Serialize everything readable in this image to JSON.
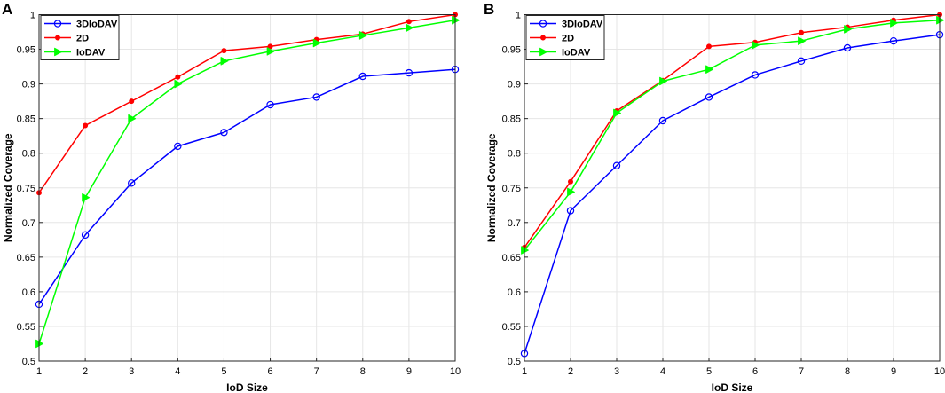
{
  "chart_data": [
    {
      "panel": "A",
      "type": "line",
      "xlabel": "IoD Size",
      "ylabel": "Normalized Coverage",
      "x": [
        1,
        2,
        3,
        4,
        5,
        6,
        7,
        8,
        9,
        10
      ],
      "xlim": [
        1,
        10
      ],
      "ylim": [
        0.5,
        1
      ],
      "xticks": [
        "1",
        "2",
        "3",
        "4",
        "5",
        "6",
        "7",
        "8",
        "9",
        "10"
      ],
      "yticks": [
        "0.5",
        "0.55",
        "0.6",
        "0.65",
        "0.7",
        "0.75",
        "0.8",
        "0.85",
        "0.9",
        "0.95",
        "1"
      ],
      "ytick_values": [
        0.5,
        0.55,
        0.6,
        0.65,
        0.7,
        0.75,
        0.8,
        0.85,
        0.9,
        0.95,
        1
      ],
      "grid": true,
      "legend_position": "top-left",
      "series": [
        {
          "name": "3DIoDAV",
          "color": "#0000ff",
          "marker": "circle",
          "values": [
            0.582,
            0.682,
            0.757,
            0.81,
            0.83,
            0.87,
            0.881,
            0.911,
            0.916,
            0.921
          ]
        },
        {
          "name": "2D",
          "color": "#ff0000",
          "marker": "dot",
          "values": [
            0.743,
            0.84,
            0.875,
            0.91,
            0.948,
            0.954,
            0.964,
            0.972,
            0.99,
            1.0
          ]
        },
        {
          "name": "IoDAV",
          "color": "#00ff00",
          "marker": "triangle-right",
          "values": [
            0.525,
            0.736,
            0.85,
            0.9,
            0.933,
            0.947,
            0.959,
            0.97,
            0.981,
            0.992
          ]
        }
      ]
    },
    {
      "panel": "B",
      "type": "line",
      "xlabel": "IoD Size",
      "ylabel": "Normalized Coverage",
      "x": [
        1,
        2,
        3,
        4,
        5,
        6,
        7,
        8,
        9,
        10
      ],
      "xlim": [
        1,
        10
      ],
      "ylim": [
        0.5,
        1
      ],
      "xticks": [
        "1",
        "2",
        "3",
        "4",
        "5",
        "6",
        "7",
        "8",
        "9",
        "10"
      ],
      "yticks": [
        "0.5",
        "0.55",
        "0.6",
        "0.65",
        "0.7",
        "0.75",
        "0.8",
        "0.85",
        "0.9",
        "0.95",
        "1"
      ],
      "ytick_values": [
        0.5,
        0.55,
        0.6,
        0.65,
        0.7,
        0.75,
        0.8,
        0.85,
        0.9,
        0.95,
        1
      ],
      "grid": true,
      "legend_position": "top-left",
      "series": [
        {
          "name": "3DIoDAV",
          "color": "#0000ff",
          "marker": "circle",
          "values": [
            0.511,
            0.717,
            0.782,
            0.847,
            0.881,
            0.913,
            0.933,
            0.952,
            0.962,
            0.971
          ]
        },
        {
          "name": "2D",
          "color": "#ff0000",
          "marker": "dot",
          "values": [
            0.664,
            0.759,
            0.861,
            0.905,
            0.954,
            0.96,
            0.974,
            0.982,
            0.992,
            1.0
          ]
        },
        {
          "name": "IoDAV",
          "color": "#00ff00",
          "marker": "triangle-right",
          "values": [
            0.66,
            0.744,
            0.858,
            0.904,
            0.921,
            0.956,
            0.962,
            0.979,
            0.988,
            0.992
          ]
        }
      ]
    }
  ]
}
